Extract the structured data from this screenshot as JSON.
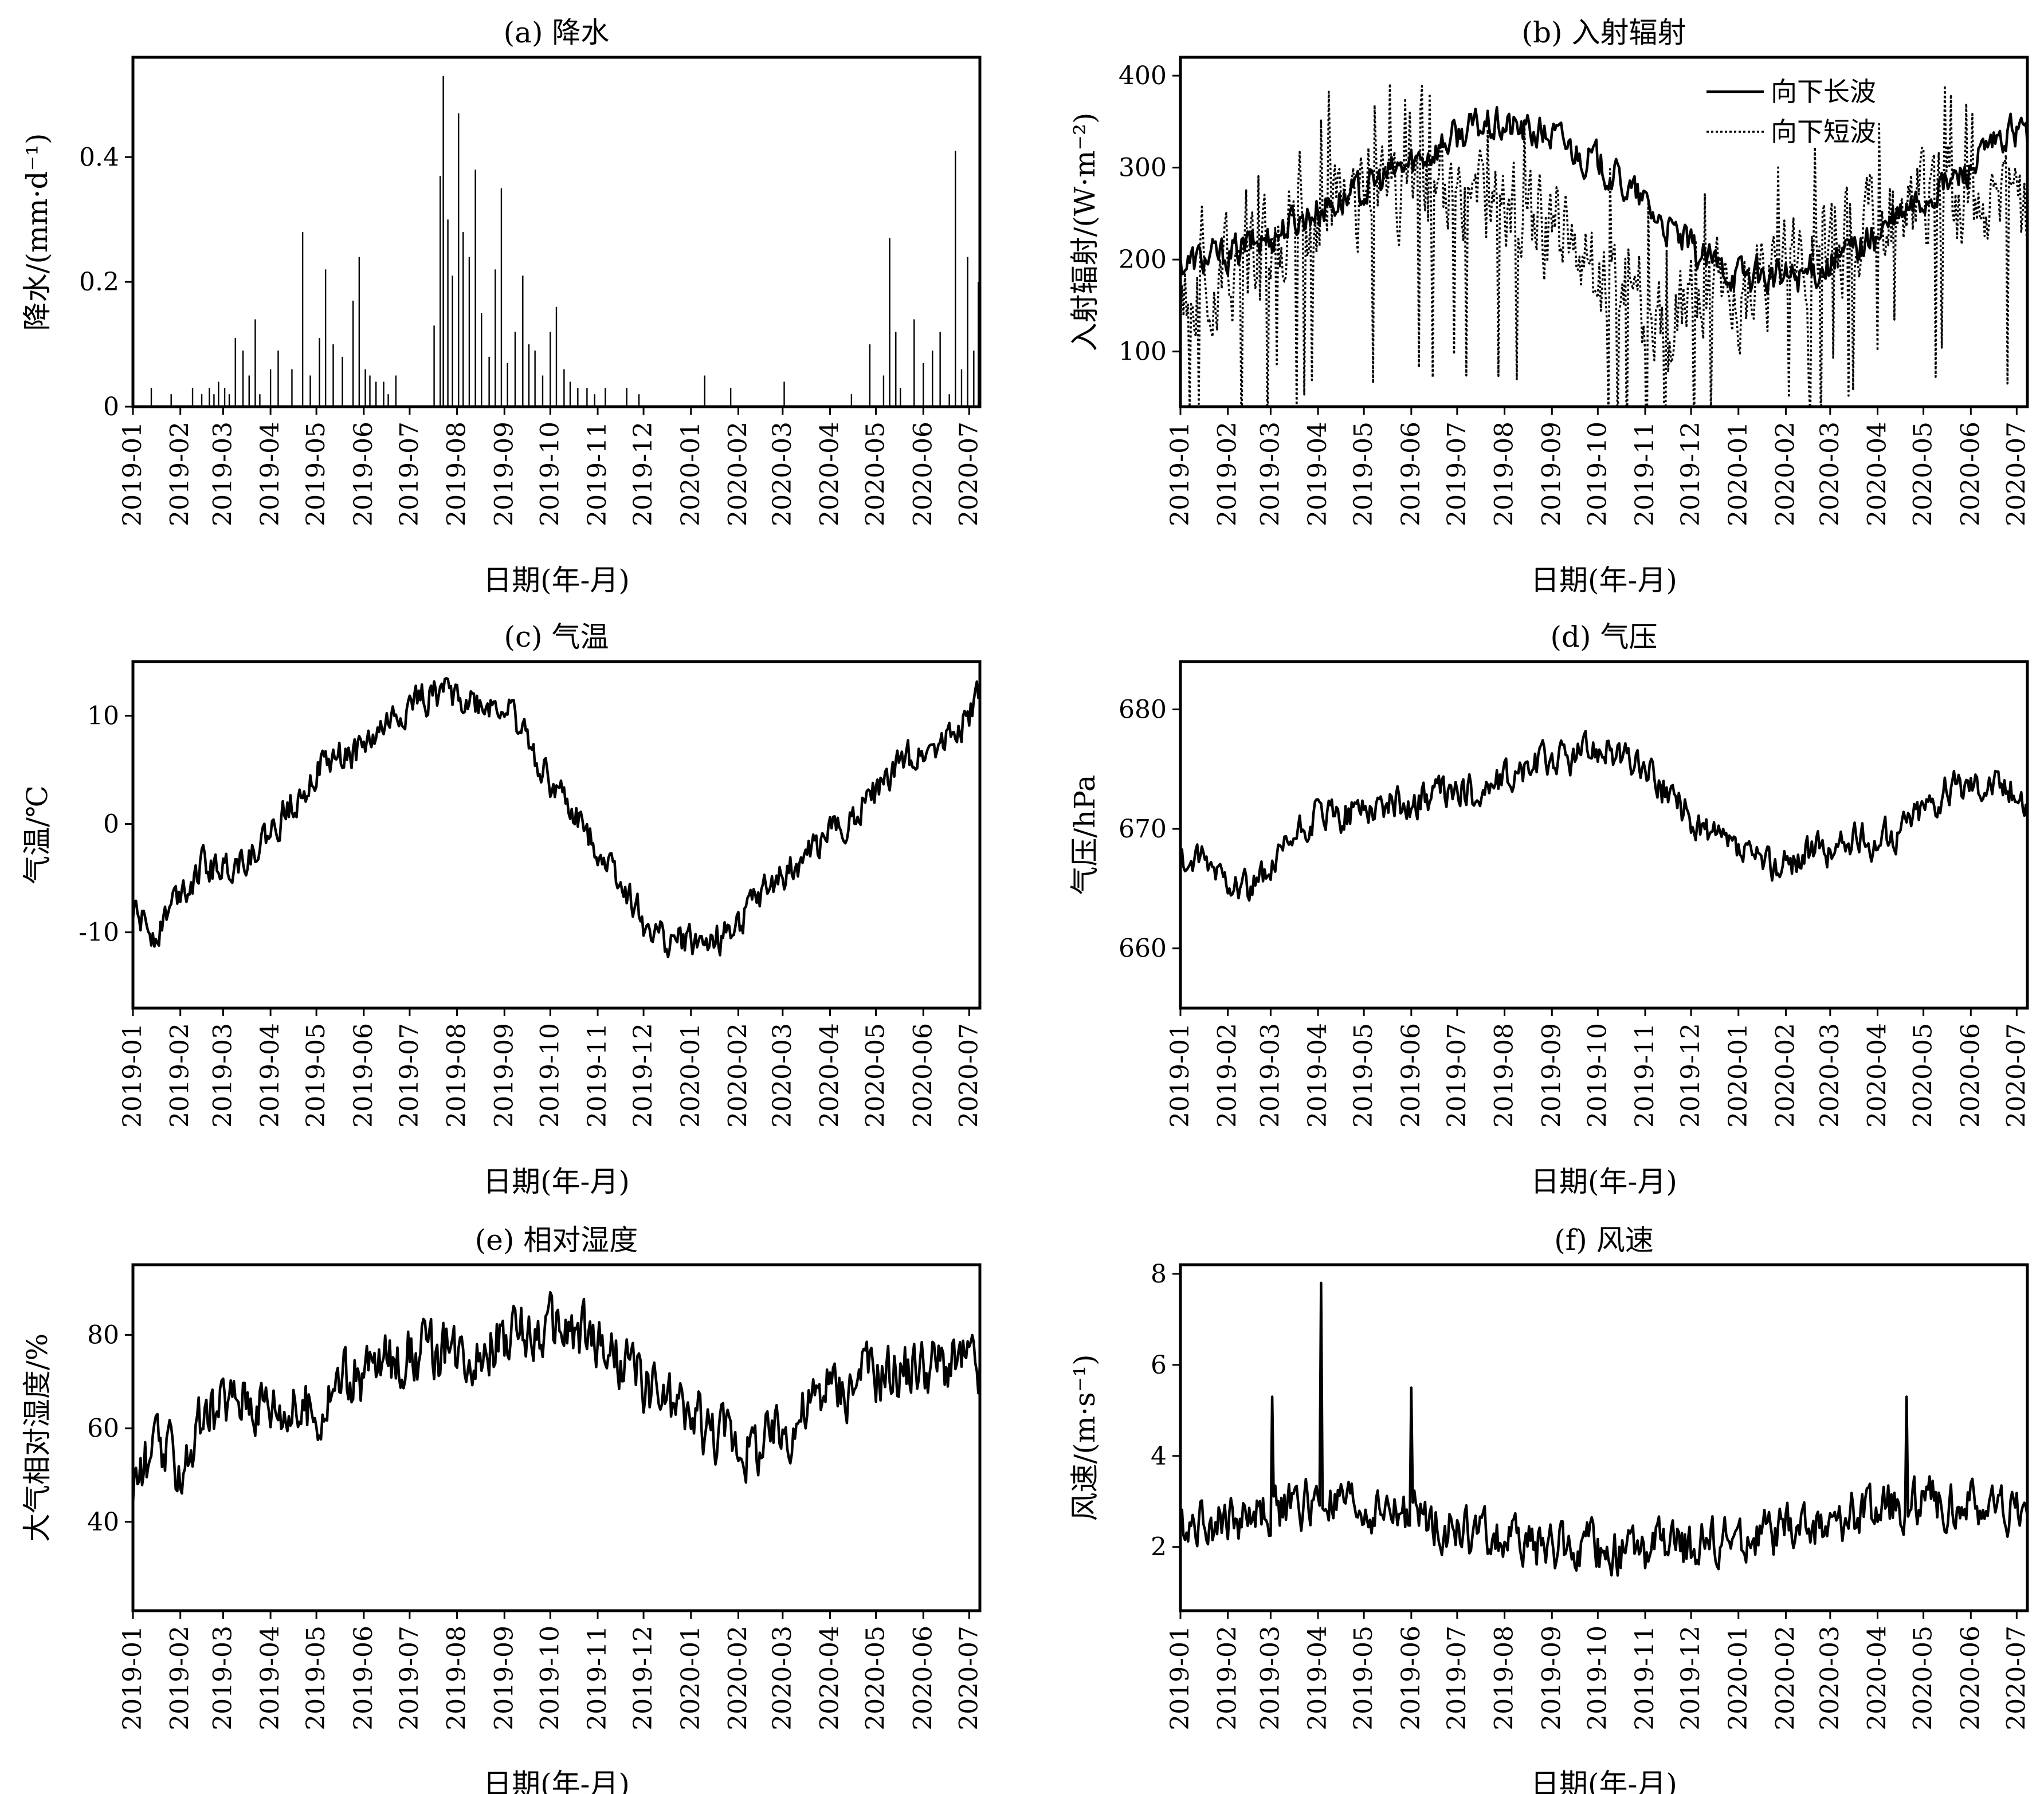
{
  "figure": {
    "xtick_labels": [
      "2019-01",
      "2019-02",
      "2019-03",
      "2019-04",
      "2019-05",
      "2019-06",
      "2019-07",
      "2019-08",
      "2019-09",
      "2019-10",
      "2019-11",
      "2019-12",
      "2020-01",
      "2020-02",
      "2020-03",
      "2020-04",
      "2020-05",
      "2020-06",
      "2020-07"
    ]
  },
  "chart_data": [
    {
      "id": "a",
      "type": "bar",
      "title": "(a) 降水",
      "xlabel": "日期(年-月)",
      "ylabel": "降水/(mm·d⁻¹)",
      "xlim": [
        "2019-01-01",
        "2020-07-08"
      ],
      "ylim": [
        0,
        0.56
      ],
      "yticks": [
        0,
        0.2,
        0.4
      ],
      "ytick_labels": [
        "0",
        "0.2",
        "0.4"
      ],
      "series": [
        {
          "x": [
            "2019-01-13",
            "2019-01-26",
            "2019-02-09",
            "2019-02-15",
            "2019-02-20",
            "2019-02-23",
            "2019-02-26",
            "2019-03-02",
            "2019-03-05",
            "2019-03-09",
            "2019-03-14",
            "2019-03-18",
            "2019-03-22",
            "2019-03-25",
            "2019-04-01",
            "2019-04-06",
            "2019-04-15",
            "2019-04-22",
            "2019-04-27",
            "2019-05-03",
            "2019-05-07",
            "2019-05-12",
            "2019-05-18",
            "2019-05-25",
            "2019-05-29",
            "2019-06-02",
            "2019-06-05",
            "2019-06-09",
            "2019-06-14",
            "2019-06-17",
            "2019-06-22",
            "2019-07-17",
            "2019-07-21",
            "2019-07-23",
            "2019-07-26",
            "2019-07-29",
            "2019-08-02",
            "2019-08-05",
            "2019-08-09",
            "2019-08-13",
            "2019-08-17",
            "2019-08-22",
            "2019-08-26",
            "2019-08-30",
            "2019-09-03",
            "2019-09-08",
            "2019-09-13",
            "2019-09-17",
            "2019-09-21",
            "2019-09-26",
            "2019-10-01",
            "2019-10-05",
            "2019-10-10",
            "2019-10-14",
            "2019-10-19",
            "2019-10-25",
            "2019-10-30",
            "2019-11-06",
            "2019-11-20",
            "2019-11-28",
            "2020-01-10",
            "2020-01-27",
            "2020-03-02",
            "2020-04-15",
            "2020-04-27",
            "2020-05-06",
            "2020-05-10",
            "2020-05-14",
            "2020-05-17",
            "2020-05-26",
            "2020-06-01",
            "2020-06-07",
            "2020-06-12",
            "2020-06-18",
            "2020-06-22",
            "2020-06-26",
            "2020-06-30",
            "2020-07-04",
            "2020-07-07"
          ],
          "values": [
            0.03,
            0.02,
            0.03,
            0.02,
            0.03,
            0.02,
            0.04,
            0.03,
            0.02,
            0.11,
            0.09,
            0.05,
            0.14,
            0.02,
            0.06,
            0.09,
            0.06,
            0.28,
            0.05,
            0.11,
            0.22,
            0.1,
            0.08,
            0.17,
            0.24,
            0.06,
            0.05,
            0.04,
            0.04,
            0.02,
            0.05,
            0.13,
            0.37,
            0.53,
            0.3,
            0.21,
            0.47,
            0.28,
            0.24,
            0.38,
            0.15,
            0.08,
            0.22,
            0.35,
            0.07,
            0.12,
            0.21,
            0.1,
            0.09,
            0.05,
            0.12,
            0.16,
            0.06,
            0.04,
            0.03,
            0.03,
            0.02,
            0.03,
            0.03,
            0.02,
            0.05,
            0.03,
            0.04,
            0.02,
            0.1,
            0.05,
            0.27,
            0.12,
            0.03,
            0.14,
            0.07,
            0.09,
            0.12,
            0.02,
            0.41,
            0.06,
            0.24,
            0.09,
            0.2
          ]
        }
      ]
    },
    {
      "id": "b",
      "type": "line",
      "title": "(b) 入射辐射",
      "xlabel": "日期(年-月)",
      "ylabel": "入射辐射/(W·m⁻²)",
      "xlim": [
        "2019-01-01",
        "2020-07-08"
      ],
      "ylim": [
        40,
        420
      ],
      "yticks": [
        100,
        200,
        300,
        400
      ],
      "ytick_labels": [
        "100",
        "200",
        "300",
        "400"
      ],
      "legend": "top-right",
      "series": [
        {
          "name": "向下长波",
          "style": "solid",
          "color": "#000000",
          "x": [
            "2019-01-01",
            "2019-01-15",
            "2019-02-01",
            "2019-02-15",
            "2019-03-01",
            "2019-03-15",
            "2019-04-01",
            "2019-04-15",
            "2019-05-01",
            "2019-05-15",
            "2019-06-01",
            "2019-06-15",
            "2019-07-01",
            "2019-07-15",
            "2019-08-01",
            "2019-08-15",
            "2019-09-01",
            "2019-09-15",
            "2019-10-01",
            "2019-10-15",
            "2019-11-01",
            "2019-11-15",
            "2019-12-01",
            "2019-12-15",
            "2020-01-01",
            "2020-01-15",
            "2020-02-01",
            "2020-02-15",
            "2020-03-01",
            "2020-03-15",
            "2020-04-01",
            "2020-04-15",
            "2020-05-01",
            "2020-05-15",
            "2020-06-01",
            "2020-06-15",
            "2020-07-01",
            "2020-07-08"
          ],
          "values": [
            195,
            200,
            205,
            215,
            225,
            240,
            255,
            265,
            275,
            290,
            305,
            320,
            335,
            345,
            345,
            340,
            335,
            320,
            305,
            285,
            260,
            235,
            210,
            195,
            185,
            180,
            180,
            185,
            195,
            210,
            225,
            245,
            265,
            280,
            300,
            320,
            340,
            335
          ]
        },
        {
          "name": "向下短波",
          "style": "dotted",
          "color": "#000000",
          "x": [
            "2019-01-01",
            "2019-01-15",
            "2019-02-01",
            "2019-02-15",
            "2019-03-01",
            "2019-03-15",
            "2019-04-01",
            "2019-04-15",
            "2019-05-01",
            "2019-05-15",
            "2019-06-01",
            "2019-06-15",
            "2019-07-01",
            "2019-07-15",
            "2019-08-01",
            "2019-08-15",
            "2019-09-01",
            "2019-09-15",
            "2019-10-01",
            "2019-10-15",
            "2019-11-01",
            "2019-11-15",
            "2019-12-01",
            "2019-12-15",
            "2020-01-01",
            "2020-01-15",
            "2020-02-01",
            "2020-02-15",
            "2020-03-01",
            "2020-03-15",
            "2020-04-01",
            "2020-04-15",
            "2020-05-01",
            "2020-05-15",
            "2020-06-01",
            "2020-06-15",
            "2020-07-01",
            "2020-07-08"
          ],
          "values": [
            160,
            170,
            180,
            195,
            210,
            230,
            250,
            265,
            275,
            285,
            280,
            270,
            260,
            255,
            250,
            245,
            235,
            215,
            190,
            170,
            150,
            140,
            145,
            155,
            165,
            175,
            185,
            200,
            215,
            230,
            245,
            260,
            270,
            270,
            265,
            255,
            250,
            245
          ]
        }
      ]
    },
    {
      "id": "c",
      "type": "line",
      "title": "(c) 气温",
      "xlabel": "日期(年-月)",
      "ylabel": "气温/℃",
      "xlim": [
        "2019-01-01",
        "2020-07-08"
      ],
      "ylim": [
        -17,
        15
      ],
      "yticks": [
        -10,
        0,
        10
      ],
      "ytick_labels": [
        "-10",
        "0",
        "10"
      ],
      "series": [
        {
          "x": [
            "2019-01-01",
            "2019-01-15",
            "2019-02-01",
            "2019-02-15",
            "2019-03-01",
            "2019-03-15",
            "2019-04-01",
            "2019-04-15",
            "2019-05-01",
            "2019-05-15",
            "2019-06-01",
            "2019-06-15",
            "2019-07-01",
            "2019-07-15",
            "2019-08-01",
            "2019-08-15",
            "2019-09-01",
            "2019-09-15",
            "2019-10-01",
            "2019-10-15",
            "2019-11-01",
            "2019-11-15",
            "2019-12-01",
            "2019-12-15",
            "2020-01-01",
            "2020-01-15",
            "2020-02-01",
            "2020-02-15",
            "2020-03-01",
            "2020-03-15",
            "2020-04-01",
            "2020-04-15",
            "2020-05-01",
            "2020-05-15",
            "2020-06-01",
            "2020-06-15",
            "2020-07-01",
            "2020-07-08"
          ],
          "values": [
            -8,
            -10,
            -6,
            -4,
            -4,
            -3,
            -1,
            2,
            5,
            6,
            7,
            9,
            11,
            12,
            12,
            11,
            11,
            8,
            4,
            1,
            -2,
            -5,
            -9,
            -11,
            -11,
            -11,
            -9,
            -7,
            -5,
            -3,
            -1,
            1,
            3,
            5,
            7,
            8,
            10,
            12
          ]
        }
      ]
    },
    {
      "id": "d",
      "type": "line",
      "title": "(d) 气压",
      "xlabel": "日期(年-月)",
      "ylabel": "气压/hPa",
      "xlim": [
        "2019-01-01",
        "2020-07-08"
      ],
      "ylim": [
        655,
        684
      ],
      "yticks": [
        660,
        670,
        680
      ],
      "ytick_labels": [
        "660",
        "670",
        "680"
      ],
      "series": [
        {
          "x": [
            "2019-01-01",
            "2019-01-15",
            "2019-02-01",
            "2019-02-15",
            "2019-03-01",
            "2019-03-15",
            "2019-04-01",
            "2019-04-15",
            "2019-05-01",
            "2019-05-15",
            "2019-06-01",
            "2019-06-15",
            "2019-07-01",
            "2019-07-15",
            "2019-08-01",
            "2019-08-15",
            "2019-09-01",
            "2019-09-15",
            "2019-10-01",
            "2019-10-15",
            "2019-11-01",
            "2019-11-15",
            "2019-12-01",
            "2019-12-15",
            "2020-01-01",
            "2020-01-15",
            "2020-02-01",
            "2020-02-15",
            "2020-03-01",
            "2020-03-15",
            "2020-04-01",
            "2020-04-15",
            "2020-05-01",
            "2020-05-15",
            "2020-06-01",
            "2020-06-15",
            "2020-07-01",
            "2020-07-08"
          ],
          "values": [
            667,
            667,
            666,
            665,
            666,
            669,
            671,
            671,
            672,
            672,
            672,
            673,
            673,
            673,
            674,
            675,
            676,
            676,
            677,
            676,
            675,
            673,
            671,
            669,
            668,
            667,
            667,
            668,
            668,
            669,
            669,
            670,
            672,
            673,
            674,
            674,
            673,
            672
          ]
        }
      ]
    },
    {
      "id": "e",
      "type": "line",
      "title": "(e) 相对湿度",
      "xlabel": "日期(年-月)",
      "ylabel": "大气相对湿度/%",
      "xlim": [
        "2019-01-01",
        "2020-07-08"
      ],
      "ylim": [
        21,
        95
      ],
      "yticks": [
        40,
        60,
        80
      ],
      "ytick_labels": [
        "40",
        "60",
        "80"
      ],
      "series": [
        {
          "x": [
            "2019-01-01",
            "2019-01-15",
            "2019-02-01",
            "2019-02-15",
            "2019-03-01",
            "2019-03-15",
            "2019-04-01",
            "2019-04-15",
            "2019-05-01",
            "2019-05-15",
            "2019-06-01",
            "2019-06-15",
            "2019-07-01",
            "2019-07-15",
            "2019-08-01",
            "2019-08-15",
            "2019-09-01",
            "2019-09-15",
            "2019-10-01",
            "2019-10-15",
            "2019-11-01",
            "2019-11-15",
            "2019-12-01",
            "2019-12-15",
            "2020-01-01",
            "2020-01-15",
            "2020-02-01",
            "2020-02-15",
            "2020-03-01",
            "2020-03-15",
            "2020-04-01",
            "2020-04-15",
            "2020-05-01",
            "2020-05-15",
            "2020-06-01",
            "2020-06-15",
            "2020-07-01",
            "2020-07-08"
          ],
          "values": [
            48,
            55,
            52,
            60,
            65,
            68,
            66,
            64,
            63,
            70,
            72,
            74,
            76,
            76,
            77,
            78,
            79,
            80,
            81,
            80,
            78,
            74,
            70,
            66,
            62,
            60,
            58,
            56,
            60,
            64,
            68,
            70,
            72,
            73,
            74,
            74,
            74,
            72
          ]
        }
      ]
    },
    {
      "id": "f",
      "type": "line",
      "title": "(f) 风速",
      "xlabel": "日期(年-月)",
      "ylabel": "风速/(m·s⁻¹)",
      "xlim": [
        "2019-01-01",
        "2020-07-08"
      ],
      "ylim": [
        0.6,
        8.2
      ],
      "yticks": [
        2,
        4,
        6,
        8
      ],
      "ytick_labels": [
        "2",
        "4",
        "6",
        "8"
      ],
      "series": [
        {
          "x": [
            "2019-01-01",
            "2019-01-15",
            "2019-02-01",
            "2019-02-15",
            "2019-03-01",
            "2019-03-15",
            "2019-04-01",
            "2019-04-15",
            "2019-05-01",
            "2019-05-15",
            "2019-06-01",
            "2019-06-15",
            "2019-07-01",
            "2019-07-15",
            "2019-08-01",
            "2019-08-15",
            "2019-09-01",
            "2019-09-15",
            "2019-10-01",
            "2019-10-15",
            "2019-11-01",
            "2019-11-15",
            "2019-12-01",
            "2019-12-15",
            "2020-01-01",
            "2020-01-15",
            "2020-02-01",
            "2020-02-15",
            "2020-03-01",
            "2020-03-15",
            "2020-04-01",
            "2020-04-15",
            "2020-05-01",
            "2020-05-15",
            "2020-06-01",
            "2020-06-15",
            "2020-07-01",
            "2020-07-08"
          ],
          "values": [
            2.5,
            2.6,
            2.6,
            2.7,
            2.8,
            2.9,
            3,
            2.9,
            2.8,
            2.8,
            2.7,
            2.6,
            2.4,
            2.3,
            2.2,
            2.1,
            2,
            2,
            1.9,
            1.9,
            1.9,
            2,
            2,
            2.1,
            2.1,
            2.2,
            2.3,
            2.4,
            2.5,
            2.7,
            2.8,
            2.9,
            3,
            3,
            2.9,
            2.8,
            2.8,
            2.7
          ]
        }
      ],
      "peaks": [
        {
          "x": "2019-04-03",
          "y": 7.8
        },
        {
          "x": "2019-06-01",
          "y": 5.5
        },
        {
          "x": "2019-03-02",
          "y": 5.3
        },
        {
          "x": "2020-04-20",
          "y": 5.3
        }
      ]
    }
  ]
}
